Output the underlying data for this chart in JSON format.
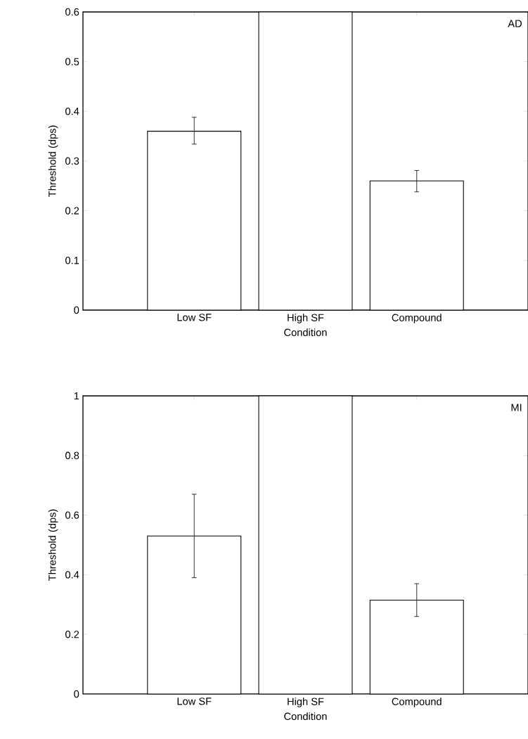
{
  "chart_data": [
    {
      "type": "bar",
      "categories": [
        "Low SF",
        "High SF",
        "Compound"
      ],
      "xlabel": "Condition",
      "ylabel": "Threshold (dps)",
      "values": [
        0.36,
        0.6,
        0.26
      ],
      "errors": [
        [
          0.334,
          0.388
        ],
        null,
        [
          0.238,
          0.281
        ]
      ],
      "color": "#000000",
      "ylim": [
        0,
        0.6
      ],
      "yticks": [
        0,
        0.1,
        0.2,
        0.3,
        0.4,
        0.5,
        0.6
      ],
      "annotations": [
        "AD"
      ]
    },
    {
      "type": "bar",
      "categories": [
        "Low SF",
        "High SF",
        "Compound"
      ],
      "xlabel": "Condition",
      "ylabel": "Threshold (dps)",
      "values": [
        0.53,
        1,
        0.315
      ],
      "errors": [
        [
          0.39,
          0.67
        ],
        null,
        [
          0.26,
          0.37
        ]
      ],
      "color": "#000000",
      "ylim": [
        0,
        1
      ],
      "yticks": [
        0,
        0.2,
        0.4,
        0.6,
        0.8,
        1
      ],
      "annotations": [
        "MI"
      ]
    }
  ]
}
